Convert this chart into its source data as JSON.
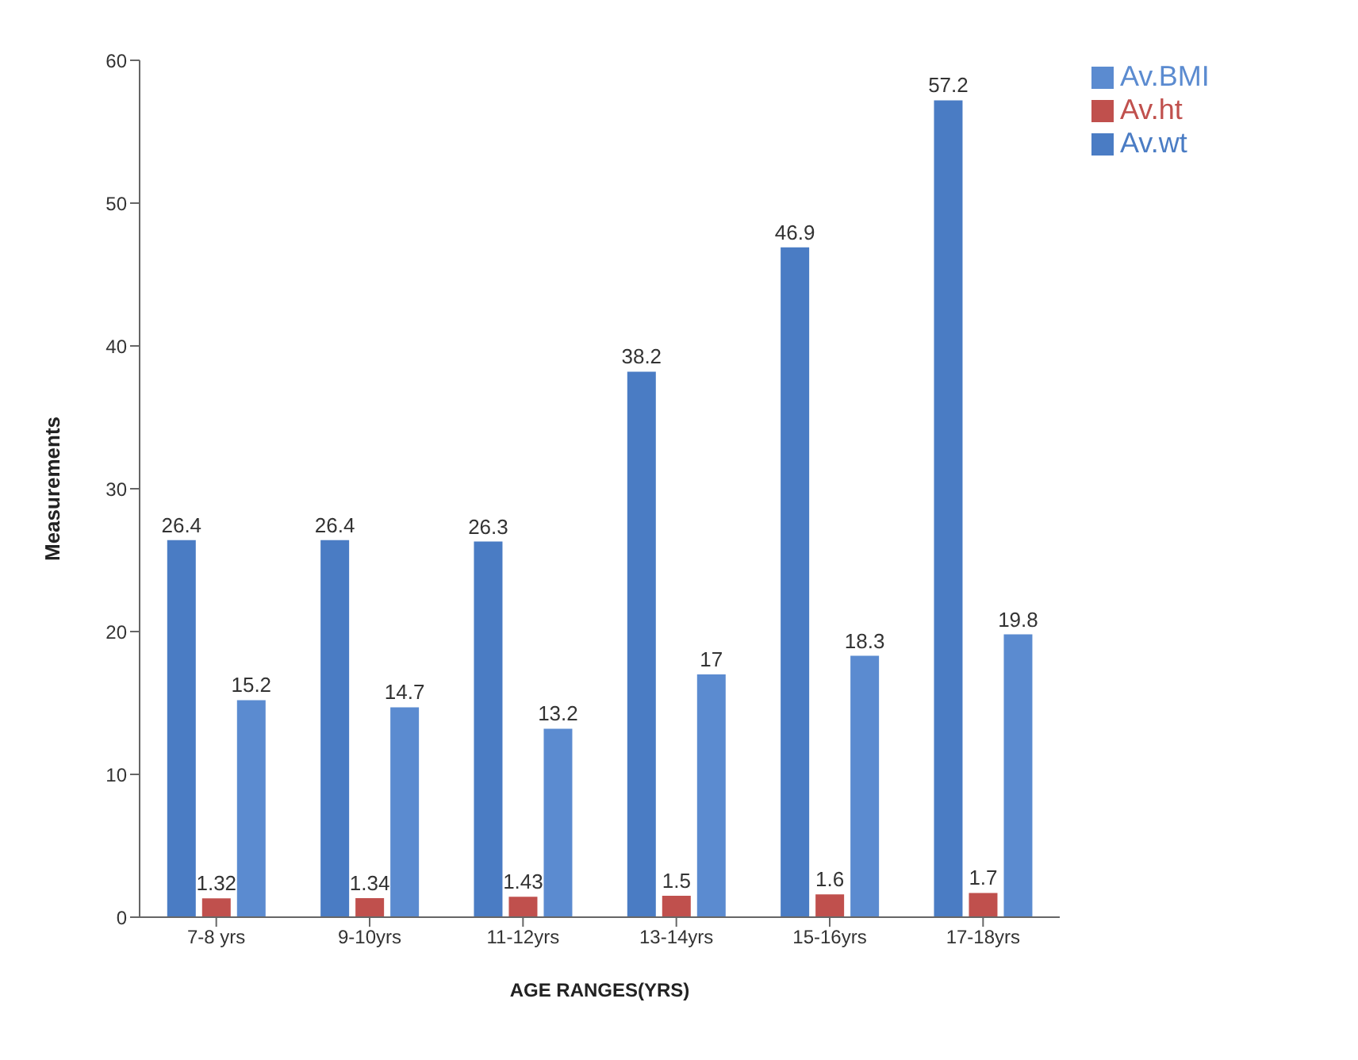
{
  "chart_data": {
    "type": "bar",
    "xlabel": "AGE RANGES(YRS)",
    "ylabel": "Measurements",
    "categories": [
      "7-8 yrs",
      "9-10yrs",
      "11-12yrs",
      "13-14yrs",
      "15-16yrs",
      "17-18yrs"
    ],
    "series": [
      {
        "name": "Av.wt",
        "color": "#4a7cc4",
        "values": [
          26.4,
          26.4,
          26.3,
          38.2,
          46.9,
          57.2
        ]
      },
      {
        "name": "Av.ht",
        "color": "#c0504d",
        "values": [
          1.32,
          1.34,
          1.43,
          1.5,
          1.6,
          1.7
        ]
      },
      {
        "name": "Av.BMI",
        "color": "#5b8bd0",
        "values": [
          15.2,
          14.7,
          13.2,
          17,
          18.3,
          19.8
        ]
      }
    ],
    "ylim": [
      0,
      60
    ],
    "yticks": [
      0,
      10,
      20,
      30,
      40,
      50,
      60
    ],
    "data_labels": true,
    "legend": "top right"
  }
}
